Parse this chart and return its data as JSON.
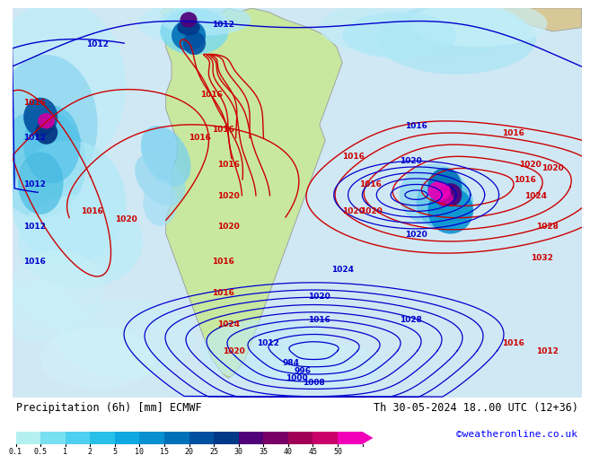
{
  "title_left": "Precipitation (6h) [mm] ECMWF",
  "title_right": "Th 30-05-2024 18..00 UTC (12+36)",
  "credit": "©weatheronline.co.uk",
  "colorbar_values": [
    "0.1",
    "0.5",
    "1",
    "2",
    "5",
    "10",
    "15",
    "20",
    "25",
    "30",
    "35",
    "40",
    "45",
    "50"
  ],
  "colorbar_colors": [
    "#b4f0f0",
    "#78e0f0",
    "#50d0f0",
    "#28c0e8",
    "#10a8e0",
    "#0890d0",
    "#0070b8",
    "#0050a0",
    "#003888",
    "#500078",
    "#780068",
    "#a00058",
    "#c80068",
    "#f000b8"
  ],
  "ocean_color": "#d0e8f4",
  "land_color": "#c8e8a0",
  "fig_bg": "white",
  "map_bg": "#d0e8f4",
  "bottom_bg": "white",
  "contour_red": "#cc0000",
  "contour_blue": "#0000cc",
  "text_color_red": "#cc0000",
  "text_color_blue": "#0000cc",
  "precip_light": "#b8eef8",
  "precip_mid": "#50c0e8",
  "precip_dark": "#0050a0",
  "precip_heavy": "#800080"
}
